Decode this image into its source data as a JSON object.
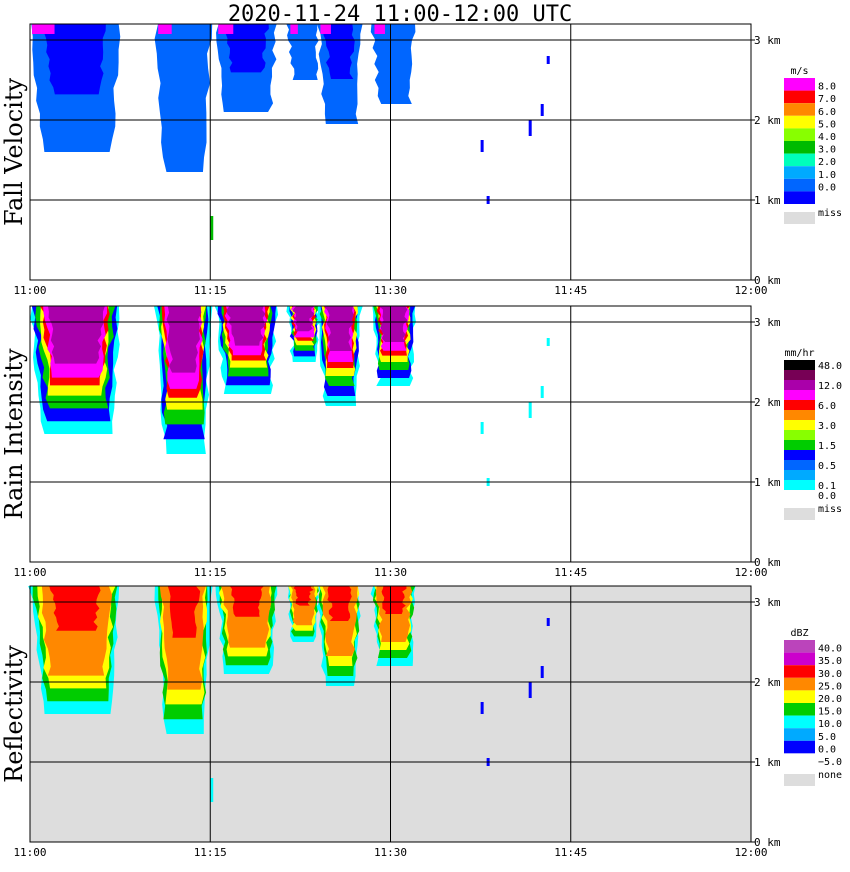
{
  "title": "2020-11-24   11:00-12:00 UTC",
  "x_ticks": [
    "11:00",
    "11:15",
    "11:30",
    "11:45",
    "12:00"
  ],
  "y_ticks": [
    "0 km",
    "1 km",
    "2 km",
    "3 km"
  ],
  "panels": [
    {
      "label": "Fall Velocity",
      "legend_unit": "m/s",
      "legend": [
        {
          "label": "8.0",
          "color": "#ff00ff"
        },
        {
          "label": "7.0",
          "color": "#ff0000"
        },
        {
          "label": "6.0",
          "color": "#ff8800"
        },
        {
          "label": "5.0",
          "color": "#ffff00"
        },
        {
          "label": "4.0",
          "color": "#88ff00"
        },
        {
          "label": "3.0",
          "color": "#00bb00"
        },
        {
          "label": "2.0",
          "color": "#00ffbb"
        },
        {
          "label": "1.0",
          "color": "#00aaff"
        },
        {
          "label": "0.0",
          "color": "#0066ff"
        },
        {
          "label": "",
          "color": "#0000ff"
        }
      ],
      "miss_label": "miss",
      "miss_color": "#dddddd",
      "background": "#ffffff"
    },
    {
      "label": "Rain Intensity",
      "legend_unit": "mm/hr",
      "legend": [
        {
          "label": "48.0",
          "color": "#000000"
        },
        {
          "label": "",
          "color": "#770055"
        },
        {
          "label": "12.0",
          "color": "#aa00aa"
        },
        {
          "label": "",
          "color": "#ff00ff"
        },
        {
          "label": "6.0",
          "color": "#ff0000"
        },
        {
          "label": "",
          "color": "#ff8800"
        },
        {
          "label": "3.0",
          "color": "#ffff00"
        },
        {
          "label": "",
          "color": "#88ff00"
        },
        {
          "label": "1.5",
          "color": "#00cc00"
        },
        {
          "label": "",
          "color": "#0000ff"
        },
        {
          "label": "0.5",
          "color": "#0066ff"
        },
        {
          "label": "",
          "color": "#00aaff"
        },
        {
          "label": "0.1",
          "color": "#00ffff"
        },
        {
          "label": "0.0",
          "color": "#ffffff"
        }
      ],
      "miss_label": "miss",
      "miss_color": "#dddddd",
      "background": "#ffffff"
    },
    {
      "label": "Reflectivity",
      "legend_unit": "dBZ",
      "legend": [
        {
          "label": "40.0",
          "color": "#bb44bb"
        },
        {
          "label": "35.0",
          "color": "#cc00cc"
        },
        {
          "label": "30.0",
          "color": "#ff0000"
        },
        {
          "label": "25.0",
          "color": "#ff8800"
        },
        {
          "label": "20.0",
          "color": "#ffff00"
        },
        {
          "label": "15.0",
          "color": "#00cc00"
        },
        {
          "label": "10.0",
          "color": "#00ffff"
        },
        {
          "label": "5.0",
          "color": "#00aaff"
        },
        {
          "label": "0.0",
          "color": "#0000ff"
        },
        {
          "label": "−5.0",
          "color": "#ffffff"
        }
      ],
      "miss_label": "none",
      "miss_color": "#dddddd",
      "background": "#dddddd"
    }
  ],
  "chart_data": {
    "type": "heatmap",
    "title": "2020-11-24   11:00-12:00 UTC",
    "x_range": [
      "11:00",
      "12:00"
    ],
    "x_unit": "UTC time",
    "y_range_km": [
      0,
      3.2
    ],
    "panels": [
      "Fall Velocity",
      "Rain Intensity",
      "Reflectivity"
    ],
    "echo_cells": [
      {
        "start_min": 0.0,
        "end_min": 7.5,
        "top_km": 3.2,
        "base_km": 1.6,
        "fv_m_s": 1.5,
        "rr_mm_hr": 12.0,
        "dbz": 30
      },
      {
        "start_min": 10.5,
        "end_min": 15.0,
        "top_km": 3.2,
        "base_km": 1.35,
        "fv_m_s": 1.5,
        "rr_mm_hr": 12.0,
        "dbz": 27
      },
      {
        "start_min": 15.5,
        "end_min": 20.5,
        "top_km": 3.2,
        "base_km": 2.1,
        "fv_m_s": 1.5,
        "rr_mm_hr": 12.0,
        "dbz": 27
      },
      {
        "start_min": 21.5,
        "end_min": 24.0,
        "top_km": 3.2,
        "base_km": 2.5,
        "fv_m_s": 1.5,
        "rr_mm_hr": 6.0,
        "dbz": 25
      },
      {
        "start_min": 24.0,
        "end_min": 27.5,
        "top_km": 3.2,
        "base_km": 1.95,
        "fv_m_s": 1.5,
        "rr_mm_hr": 12.0,
        "dbz": 27
      },
      {
        "start_min": 28.5,
        "end_min": 32.0,
        "top_km": 3.2,
        "base_km": 2.2,
        "fv_m_s": 1.5,
        "rr_mm_hr": 6.0,
        "dbz": 22
      }
    ]
  }
}
